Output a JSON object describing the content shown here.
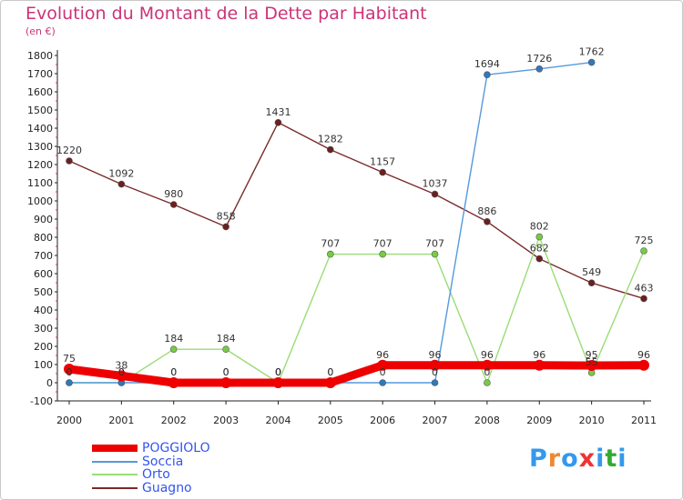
{
  "page": {
    "title": "Evolution du Montant de la Dette par Habitant",
    "subtitle": "(en €)"
  },
  "logo": {
    "text": "Proxiti",
    "colors": [
      "#3399ee",
      "#ee8833",
      "#3399ee",
      "#ee3333",
      "#3399ee",
      "#33aa33",
      "#3399ee"
    ]
  },
  "chart_data": {
    "type": "line",
    "title": "Evolution du Montant de la Dette par Habitant",
    "subtitle": "(en €)",
    "xlabel": "",
    "ylabel": "",
    "x": [
      "2000",
      "2001",
      "2002",
      "2003",
      "2004",
      "2005",
      "2006",
      "2007",
      "2008",
      "2009",
      "2010",
      "2011"
    ],
    "ylim": [
      -100,
      1800
    ],
    "yticks": [
      -100,
      0,
      100,
      200,
      300,
      400,
      500,
      600,
      700,
      800,
      900,
      1000,
      1100,
      1200,
      1300,
      1400,
      1500,
      1600,
      1700,
      1800
    ],
    "grid": false,
    "legend_position": "bottom-left",
    "series": [
      {
        "name": "Guagno",
        "color": "#7a2a2a",
        "marker": "#6b1f1f",
        "values": [
          1220,
          1092,
          980,
          858,
          1431,
          1282,
          1157,
          1037,
          886,
          682,
          549,
          463
        ],
        "labels": [
          "1220",
          "1092",
          "980",
          "858",
          "1431",
          "1282",
          "1157",
          "1037",
          "886",
          "682",
          "549",
          "463"
        ]
      },
      {
        "name": "Orto",
        "color": "#99dd77",
        "marker": "#77cc44",
        "values": [
          0,
          0,
          184,
          184,
          0,
          707,
          707,
          707,
          0,
          802,
          55,
          725
        ],
        "labels": [
          "0",
          "0",
          "184",
          "184",
          "0",
          "707",
          "707",
          "707",
          "0",
          "802",
          "55",
          "725"
        ]
      },
      {
        "name": "Soccia",
        "color": "#5599dd",
        "marker": "#3377bb",
        "values": [
          0,
          0,
          0,
          0,
          0,
          0,
          0,
          0,
          1694,
          1726,
          1762,
          null
        ],
        "labels": [
          "0",
          "0",
          "0",
          "0",
          "0",
          "0",
          "0",
          "0",
          "1694",
          "1726",
          "1762",
          ""
        ]
      },
      {
        "name": "POGGIOLO",
        "color": "#ee0000",
        "marker": "#ee0000",
        "values": [
          75,
          38,
          0,
          0,
          0,
          0,
          96,
          96,
          96,
          96,
          95,
          96
        ],
        "labels": [
          "75",
          "38",
          "0",
          "0",
          "0",
          "0",
          "96",
          "96",
          "96",
          "96",
          "95",
          "96"
        ]
      }
    ],
    "legend": [
      {
        "name": "POGGIOLO",
        "color": "#ee0000",
        "thick": true
      },
      {
        "name": "Soccia",
        "color": "#5599dd",
        "thick": false
      },
      {
        "name": "Orto",
        "color": "#99dd77",
        "thick": false
      },
      {
        "name": "Guagno",
        "color": "#7a2a2a",
        "thick": false
      }
    ]
  }
}
